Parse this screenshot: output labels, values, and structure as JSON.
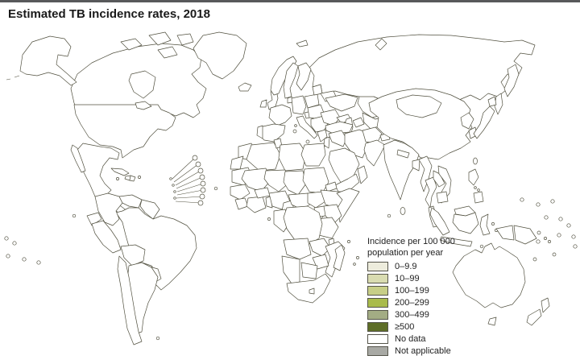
{
  "page": {
    "title": "Estimated TB incidence rates, 2018"
  },
  "legend": {
    "title": [
      "Incidence per 100 000",
      "population per year"
    ],
    "colors": {
      "c0": "#edecdc",
      "c1": "#d9dcb1",
      "c2": "#c7ce87",
      "c3": "#a9bb4b",
      "c4": "#a3ac84",
      "c5": "#5e6e27",
      "no_data": "#ffffff",
      "not_applicable": "#a8a9a4",
      "water": "#ffffff"
    },
    "items": [
      {
        "key": "c0",
        "label": "0–9.9"
      },
      {
        "key": "c1",
        "label": "10–99"
      },
      {
        "key": "c2",
        "label": "100–199"
      },
      {
        "key": "c3",
        "label": "200–299"
      },
      {
        "key": "c4",
        "label": "300–499"
      },
      {
        "key": "c5",
        "label": "≥500"
      },
      {
        "key": "no_data",
        "label": "No data"
      },
      {
        "key": "not_applicable",
        "label": "Not applicable"
      }
    ]
  },
  "map": {
    "regions": {
      "russia": "c1",
      "kamchatka": "c1",
      "sakhalin": "c1",
      "svalbard": "no_data",
      "novaya-zemlya": "no_data",
      "canada": "c0",
      "hudson-bay": "water",
      "great-lakes": "water",
      "arctic-island-1": "c0",
      "arctic-island-2": "c0",
      "arctic-island-3": "c0",
      "arctic-island-4": "c0",
      "alaska": "c0",
      "greenland": "c1",
      "usa": "c0",
      "mexico": "c1",
      "baja-california": "c1",
      "central-america": "c1",
      "cuba": "c1",
      "haiti": "c2",
      "dominican-republic": "c1",
      "jamaica": "c1",
      "puerto-rico": "c0",
      "carib-1": "c1",
      "carib-2": "c0",
      "carib-3": "c1",
      "carib-4": "c1",
      "carib-5": "c0",
      "carib-6": "c1",
      "carib-7": "c1",
      "carib-8": "c0",
      "antilles-1": "c1",
      "antilles-2": "c1",
      "antilles-3": "c1",
      "antilles-4": "c1",
      "brazil": "c1",
      "colombia": "c1",
      "venezuela": "c1",
      "guyanas": "c1",
      "ecuador": "c1",
      "peru": "c2",
      "bolivia": "c2",
      "paraguay": "c1",
      "argentina": "c1",
      "chile": "c1",
      "falkland-islands": "c0",
      "galapagos": "c0",
      "pacific-left-1": "c1",
      "pacific-left-2": "c0",
      "pacific-left-3": "c1",
      "pacific-left-4": "c0",
      "pacific-left-5": "c1",
      "iceland": "c0",
      "uk": "c0",
      "ireland": "c0",
      "norway": "c0",
      "sweden": "c0",
      "finland": "c0",
      "denmark": "c0",
      "germany": "c0",
      "france": "c0",
      "iberia": "c0",
      "portugal": "c1",
      "italy": "c0",
      "sicily": "c0",
      "sardinia": "c0",
      "corsica": "c0",
      "switzerland-austria": "c0",
      "poland": "c1",
      "czech-hungary": "c1",
      "balkans": "c1",
      "greece": "c0",
      "crete": "c0",
      "romania-bulgaria": "c1",
      "baltics": "c1",
      "belarus": "c1",
      "ukraine": "c1",
      "black-sea": "water",
      "caspian-sea": "water",
      "caucasus": "c1",
      "turkey": "c1",
      "syria-iraq": "c1",
      "israel-jordan": "c1",
      "iran": "c1",
      "saudi-arabia": "c1",
      "yemen": "c1",
      "oman": "c1",
      "kazakhstan": "c1",
      "central-asia": "c1",
      "kyrgyz-tajik": "c2",
      "afghanistan": "c2",
      "pakistan": "c3",
      "kashmir": "not_applicable",
      "china": "c1",
      "mongolia": "c4",
      "north-korea": "c5",
      "south-korea": "c1",
      "japan": "c1",
      "hokkaido": "c1",
      "taiwan": "c1",
      "india": "c2",
      "nepal": "c3",
      "bangladesh": "c3",
      "sri-lanka": "c1",
      "maldives": "c1",
      "myanmar": "c4",
      "thailand": "c2",
      "laos": "c2",
      "vietnam": "c2",
      "cambodia": "c4",
      "malaysia-peninsula": "c1",
      "sumatra": "c4",
      "borneo-malaysia": "c1",
      "kalimantan": "c4",
      "java": "c4",
      "sulawesi": "c4",
      "moluccas-1": "c4",
      "moluccas-2": "c4",
      "timor": "c4",
      "west-papua": "c4",
      "papua-new-guinea": "c4",
      "new-britain": "c4",
      "solomons-1": "c4",
      "solomons-2": "c4",
      "philippines-luzon": "c5",
      "philippines-visayas-1": "c5",
      "philippines-visayas-2": "c5",
      "philippines-mindanao": "c5",
      "morocco": "c1",
      "western-sahara": "not_applicable",
      "algeria": "c1",
      "tunisia": "c1",
      "libya": "c1",
      "egypt": "c1",
      "mauritania": "c1",
      "mali": "c1",
      "niger": "c2",
      "chad": "c2",
      "sudan": "c1",
      "eritrea": "c1",
      "senegal-guinea": "c2",
      "sierra-leone-liberia": "c3",
      "cote-divoire-ghana": "c2",
      "burkina-faso": "c1",
      "benin-togo": "c2",
      "nigeria": "c3",
      "cameroon": "c2",
      "central-african-republic": "c5",
      "south-sudan": "c2",
      "ethiopia": "c2",
      "somalia": "c3",
      "kenya": "c3",
      "uganda": "c3",
      "lake-victoria": "water",
      "tanzania": "c3",
      "gabon-congo": "c5",
      "drc": "c4",
      "angola": "c4",
      "zambia": "c4",
      "malawi": "c3",
      "mozambique": "c5",
      "zimbabwe": "c3",
      "botswana": "c3",
      "namibia": "c5",
      "south-africa": "c5",
      "lesotho": "c5",
      "madagascar": "c3",
      "comoros": "c2",
      "mauritius": "c1",
      "reunion": "c0",
      "cape-verde": "c1",
      "sao-tome": "c2",
      "australia": "c0",
      "tasmania": "c0",
      "nz-north": "c0",
      "nz-south": "c0",
      "new-caledonia": "c1",
      "fiji": "c1",
      "pacific-dot-1": "not_applicable",
      "pacific-dot-2": "c1",
      "pacific-dot-3": "not_applicable",
      "pacific-dot-4": "not_applicable",
      "pacific-dot-5": "c1",
      "pacific-dot-6": "c4",
      "pacific-dot-7": "not_applicable",
      "pacific-dot-8": "c1",
      "pacific-dot-9": "c4",
      "pacific-dot-10": "c1"
    }
  }
}
